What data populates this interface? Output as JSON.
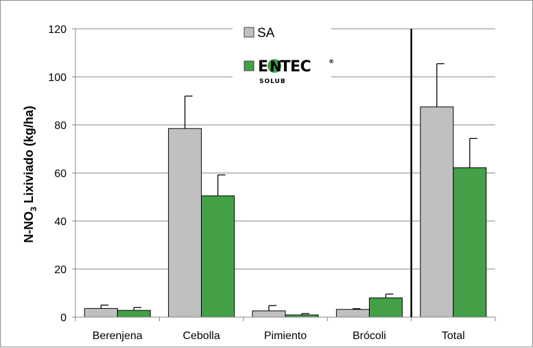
{
  "chart_data": {
    "type": "bar",
    "ylabel_main": "N-NO",
    "ylabel_sub": "3",
    "ylabel_rest": " Lixiviado (kg/ha)",
    "categories": [
      "Berenjena",
      "Cebolla",
      "Pimiento",
      "Brócoli",
      "Total"
    ],
    "ylim": [
      0,
      120
    ],
    "yticks": [
      0,
      20,
      40,
      60,
      80,
      100,
      120
    ],
    "grid": true,
    "legend_position": "top-center",
    "separator_before": "Total",
    "series": [
      {
        "name": "SA",
        "color": "#c0c0c0",
        "values": [
          3.6,
          78.5,
          2.6,
          3.2,
          87.5
        ],
        "errors": [
          1.4,
          13.5,
          2.2,
          0.3,
          18.0
        ]
      },
      {
        "name": "ENTEC",
        "color": "#43a047",
        "values": [
          2.8,
          50.5,
          0.9,
          8.0,
          62.2
        ],
        "errors": [
          1.2,
          8.7,
          0.6,
          1.6,
          12.2
        ]
      }
    ]
  },
  "legend_logo": {
    "word": "ENTEC",
    "n_letter": "N",
    "registered": "®",
    "sub": "SOLUB",
    "logo_color": "#43a047"
  }
}
